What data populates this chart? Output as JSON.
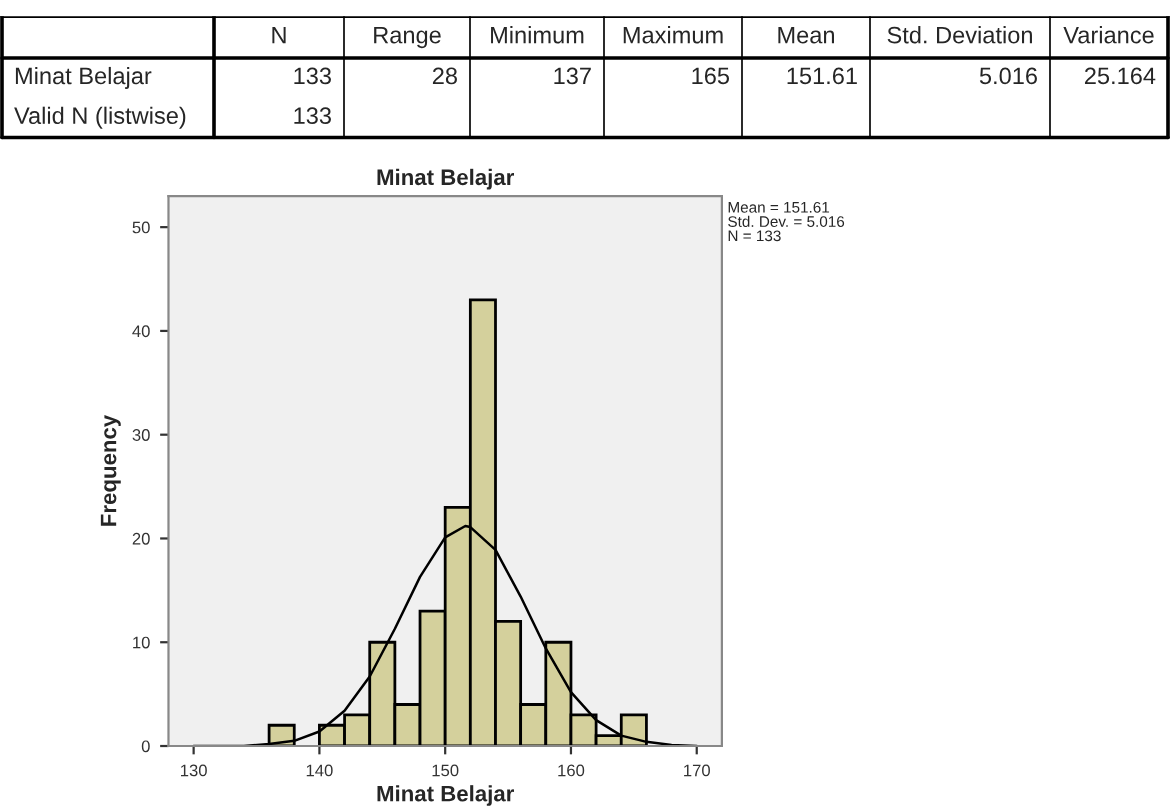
{
  "chart_data": [
    {
      "type": "other",
      "categories": [
        null,
        "N",
        "Range",
        "Minimum",
        "Maximum",
        "Mean",
        "Std. Deviation",
        "Variance"
      ],
      "y_categories": [
        "Minat Belajar",
        "Valid N (listwise)"
      ],
      "cell_labels": [
        [
          "133",
          "28",
          "137",
          "165",
          "151.61",
          "5.016",
          "25.164"
        ],
        [
          "133",
          null,
          null,
          null,
          null,
          null,
          null
        ]
      ]
    },
    {
      "type": "histogram",
      "title": "Minat Belajar",
      "xlabel": "Minat Belajar",
      "ylabel": "Frequency",
      "bins": [
        136,
        138,
        140,
        142,
        144,
        146,
        148,
        150,
        152,
        154,
        156,
        158,
        160,
        162,
        164,
        166
      ],
      "values": [
        2,
        0,
        2,
        3,
        10,
        4,
        13,
        23,
        43,
        12,
        4,
        10,
        3,
        1,
        3
      ],
      "color": "#d4d09c",
      "series": [
        {
          "type": "line",
          "color": "#000000",
          "x": [
            130,
            134,
            136,
            138,
            140,
            142,
            144,
            146,
            148,
            150,
            151.6,
            152,
            154,
            156,
            158,
            160,
            162,
            164,
            166,
            168,
            170
          ],
          "values": [
            0,
            0,
            0.2,
            0.5,
            1.4,
            3.4,
            6.7,
            11.3,
            16.3,
            20.1,
            21.2,
            21.1,
            18.9,
            14.4,
            9.4,
            5.2,
            2.5,
            1.0,
            0.4,
            0.1,
            0
          ]
        }
      ],
      "xlim": [
        128,
        172
      ],
      "ylim": [
        0,
        53
      ],
      "xticks": [
        130,
        140,
        150,
        160,
        170
      ],
      "yticks": [
        0,
        10,
        20,
        30,
        40,
        50
      ],
      "grid": false,
      "legend": false,
      "annotations": [
        "Mean = 151.61",
        "Std. Dev. = 5.016",
        "N = 133"
      ]
    }
  ]
}
